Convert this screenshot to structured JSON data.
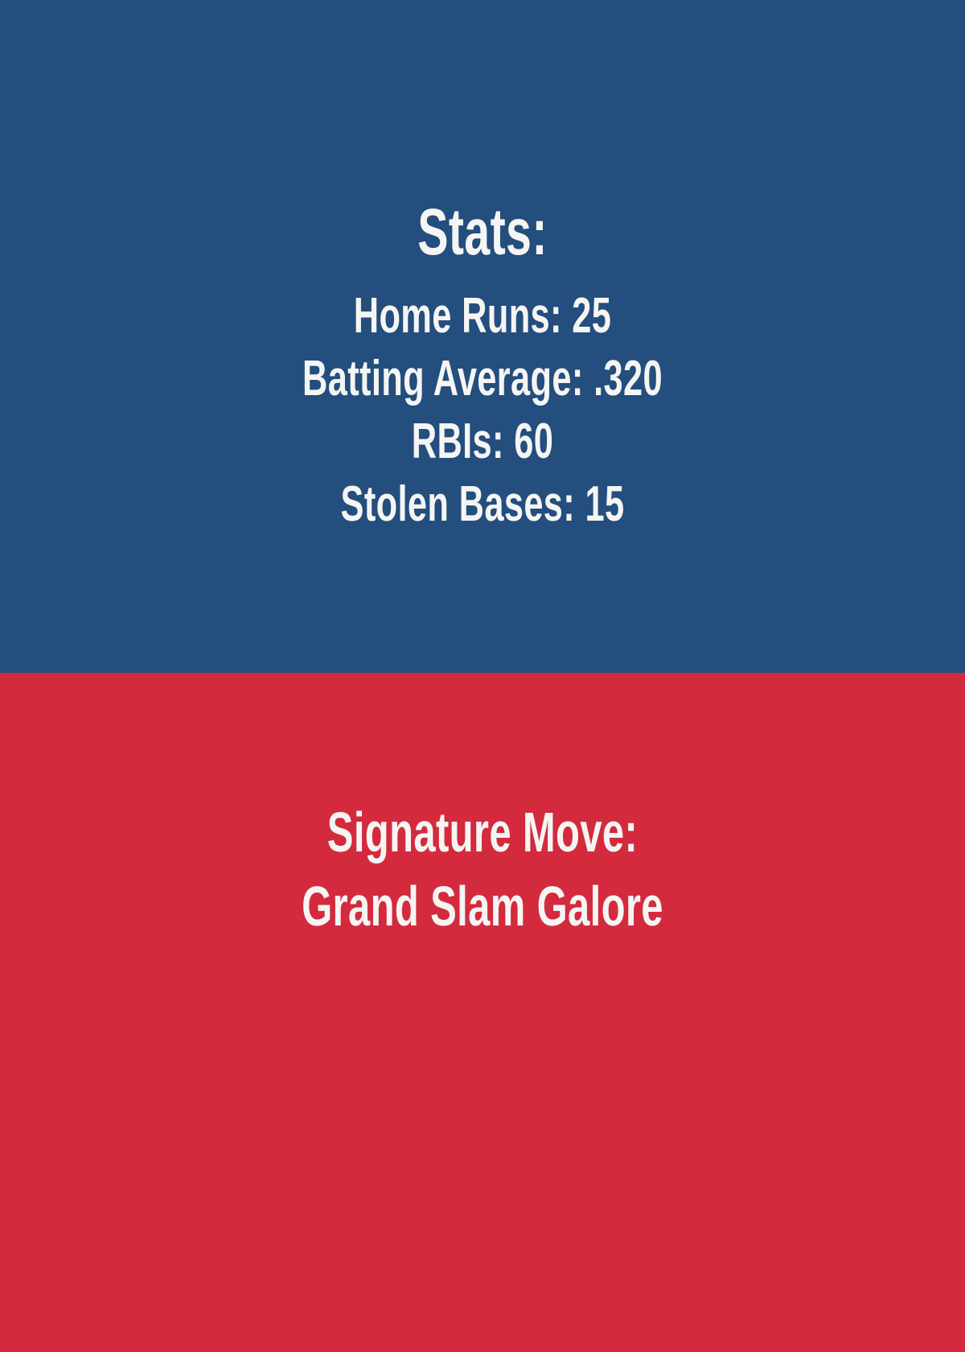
{
  "colors": {
    "stats_bg": "#234E7E",
    "signature_bg": "#D42A3E",
    "text": "#F5F5F3"
  },
  "stats_panel": {
    "title": "Stats:",
    "items": [
      "Home Runs: 25",
      "Batting Average: .320",
      "RBIs: 60",
      "Stolen Bases: 15"
    ]
  },
  "signature_panel": {
    "lines": [
      "Signature Move:",
      "Grand Slam Galore"
    ]
  }
}
